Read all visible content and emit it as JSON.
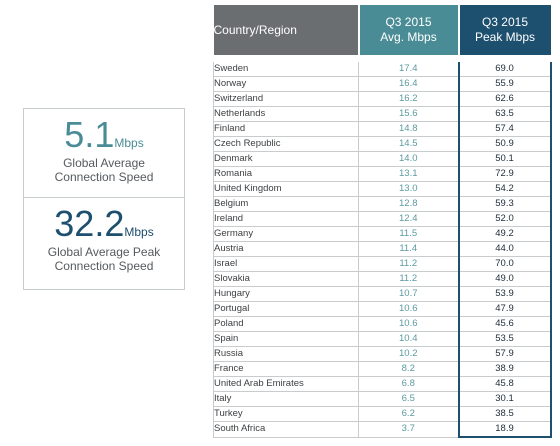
{
  "stats": {
    "avg": {
      "value": "5.1",
      "unit": "Mbps",
      "caption_line1": "Global Average",
      "caption_line2": "Connection Speed"
    },
    "peak": {
      "value": "32.2",
      "unit": "Mbps",
      "caption_line1": "Global Average Peak",
      "caption_line2": "Connection Speed"
    }
  },
  "colors": {
    "avg_accent": "#4a8c95",
    "peak_accent": "#1d4f6e",
    "country_header": "#6b6e71"
  },
  "chart_data": {
    "type": "table",
    "columns": [
      "Country/Region",
      "Q3 2015 Avg. Mbps",
      "Q3 2015 Peak Mbps"
    ],
    "header_lines": [
      [
        "Country/Region"
      ],
      [
        "Q3 2015",
        "Avg. Mbps"
      ],
      [
        "Q3 2015",
        "Peak Mbps"
      ]
    ],
    "rows": [
      [
        "Sweden",
        "17.4",
        "69.0"
      ],
      [
        "Norway",
        "16.4",
        "55.9"
      ],
      [
        "Switzerland",
        "16.2",
        "62.6"
      ],
      [
        "Netherlands",
        "15.6",
        "63.5"
      ],
      [
        "Finland",
        "14.8",
        "57.4"
      ],
      [
        "Czech Republic",
        "14.5",
        "50.9"
      ],
      [
        "Denmark",
        "14.0",
        "50.1"
      ],
      [
        "Romania",
        "13.1",
        "72.9"
      ],
      [
        "United Kingdom",
        "13.0",
        "54.2"
      ],
      [
        "Belgium",
        "12.8",
        "59.3"
      ],
      [
        "Ireland",
        "12.4",
        "52.0"
      ],
      [
        "Germany",
        "11.5",
        "49.2"
      ],
      [
        "Austria",
        "11.4",
        "44.0"
      ],
      [
        "Israel",
        "11.2",
        "70.0"
      ],
      [
        "Slovakia",
        "11.2",
        "49.0"
      ],
      [
        "Hungary",
        "10.7",
        "53.9"
      ],
      [
        "Portugal",
        "10.6",
        "47.9"
      ],
      [
        "Poland",
        "10.6",
        "45.6"
      ],
      [
        "Spain",
        "10.4",
        "53.5"
      ],
      [
        "Russia",
        "10.2",
        "57.9"
      ],
      [
        "France",
        "8.2",
        "38.9"
      ],
      [
        "United Arab Emirates",
        "6.8",
        "45.8"
      ],
      [
        "Italy",
        "6.5",
        "30.1"
      ],
      [
        "Turkey",
        "6.2",
        "38.5"
      ],
      [
        "South Africa",
        "3.7",
        "18.9"
      ]
    ]
  }
}
